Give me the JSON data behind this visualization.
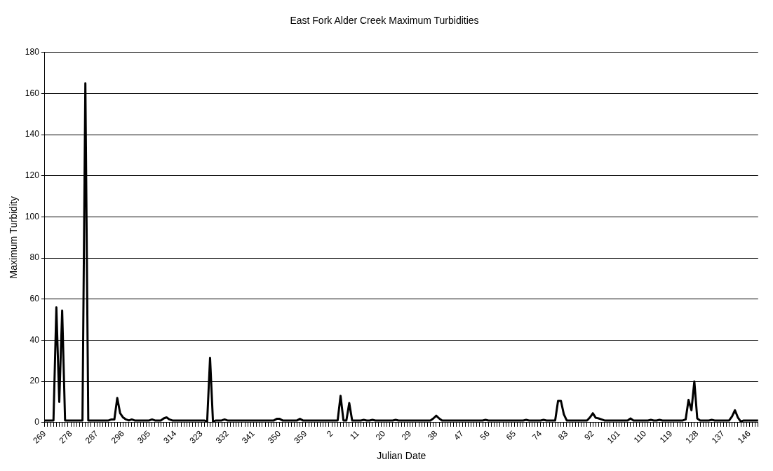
{
  "chart_data": {
    "type": "line",
    "title": "East Fork Alder Creek Maximum Turbidities",
    "xlabel": "Julian Date",
    "ylabel": "Maximum Turbidity",
    "categories": [
      "269",
      null,
      null,
      null,
      null,
      null,
      null,
      null,
      null,
      "278",
      null,
      null,
      null,
      null,
      null,
      null,
      null,
      null,
      "287",
      null,
      null,
      null,
      null,
      null,
      null,
      null,
      null,
      "296",
      null,
      null,
      null,
      null,
      null,
      null,
      null,
      null,
      "305",
      null,
      null,
      null,
      null,
      null,
      null,
      null,
      null,
      "314",
      null,
      null,
      null,
      null,
      null,
      null,
      null,
      null,
      "323",
      null,
      null,
      null,
      null,
      null,
      null,
      null,
      null,
      "332",
      null,
      null,
      null,
      null,
      null,
      null,
      null,
      null,
      "341",
      null,
      null,
      null,
      null,
      null,
      null,
      null,
      null,
      "350",
      null,
      null,
      null,
      null,
      null,
      null,
      null,
      null,
      "359",
      null,
      null,
      null,
      null,
      null,
      null,
      null,
      null,
      "2",
      null,
      null,
      null,
      null,
      null,
      null,
      null,
      null,
      "11",
      null,
      null,
      null,
      null,
      null,
      null,
      null,
      null,
      "20",
      null,
      null,
      null,
      null,
      null,
      null,
      null,
      null,
      "29",
      null,
      null,
      null,
      null,
      null,
      null,
      null,
      null,
      "38",
      null,
      null,
      null,
      null,
      null,
      null,
      null,
      null,
      "47",
      null,
      null,
      null,
      null,
      null,
      null,
      null,
      null,
      "56",
      null,
      null,
      null,
      null,
      null,
      null,
      null,
      null,
      "65",
      null,
      null,
      null,
      null,
      null,
      null,
      null,
      null,
      "74",
      null,
      null,
      null,
      null,
      null,
      null,
      null,
      null,
      "83",
      null,
      null,
      null,
      null,
      null,
      null,
      null,
      null,
      "92",
      null,
      null,
      null,
      null,
      null,
      null,
      null,
      null,
      "101",
      null,
      null,
      null,
      null,
      null,
      null,
      null,
      null,
      "110",
      null,
      null,
      null,
      null,
      null,
      null,
      null,
      null,
      "119",
      null,
      null,
      null,
      null,
      null,
      null,
      null,
      null,
      "128",
      null,
      null,
      null,
      null,
      null,
      null,
      null,
      null,
      "137",
      null,
      null,
      null,
      null,
      null,
      null,
      null,
      null,
      "146",
      null,
      null,
      null
    ],
    "series": [
      {
        "color": "#000000",
        "values": [
          1,
          1,
          1,
          1,
          56,
          10,
          54.5,
          1,
          1,
          1,
          1,
          1,
          1,
          1,
          165,
          1,
          1,
          1,
          1,
          1,
          1,
          1,
          1,
          1.5,
          1.5,
          12,
          4.5,
          2.5,
          1.5,
          1,
          1.5,
          1,
          1,
          1,
          1,
          1,
          1,
          1.5,
          1,
          1,
          1,
          2,
          2.5,
          1.5,
          1,
          1,
          1,
          1,
          1,
          1,
          1,
          1,
          1,
          1,
          1,
          1,
          0.5,
          31.5,
          0.5,
          1,
          1,
          1,
          1.5,
          1,
          1,
          1,
          1,
          1,
          1,
          1,
          1,
          1,
          1,
          1,
          1,
          1,
          1,
          1,
          1,
          1,
          1.8,
          1.8,
          1,
          1,
          1,
          1,
          1,
          1,
          1.8,
          1,
          1,
          1,
          1,
          1,
          1,
          1,
          1,
          1,
          1,
          1,
          1,
          1,
          13,
          1,
          1,
          9.5,
          1,
          1,
          1,
          1,
          1.3,
          1,
          1,
          1.3,
          1,
          1,
          1,
          1,
          1,
          1,
          1,
          1.3,
          1,
          1,
          1,
          1,
          1,
          1,
          1,
          1,
          1,
          1,
          1,
          1,
          2,
          3.3,
          2,
          1,
          1,
          1,
          1,
          1,
          1,
          1,
          1,
          1,
          1,
          1,
          1,
          1,
          1,
          1,
          1.3,
          1,
          1,
          1,
          1,
          1,
          1,
          1,
          1,
          1,
          1,
          1,
          1,
          1,
          1.3,
          1,
          1,
          1,
          1,
          1,
          1.3,
          1,
          1,
          1,
          1,
          10.5,
          10.5,
          4,
          1,
          1,
          1,
          1,
          1,
          1,
          1,
          1,
          2.5,
          4.5,
          2.3,
          2,
          1.5,
          1,
          1,
          1,
          1,
          1,
          1,
          1,
          1,
          1,
          2,
          1,
          1,
          1,
          1,
          1,
          1,
          1.3,
          1,
          1,
          1.3,
          1,
          1,
          1,
          1,
          1,
          1,
          1,
          1,
          1.5,
          11,
          6,
          20,
          2,
          1,
          1,
          1,
          1,
          1.3,
          1,
          1,
          1,
          1,
          1,
          1,
          3,
          6,
          2.5,
          0.5,
          1,
          1,
          1,
          1,
          1,
          1
        ]
      }
    ],
    "ylim": [
      0,
      180
    ],
    "yticks": [
      0,
      20,
      40,
      60,
      80,
      100,
      120,
      140,
      160,
      180
    ],
    "grid": "y",
    "legend": false,
    "marker": "none",
    "line_style": "solid"
  }
}
